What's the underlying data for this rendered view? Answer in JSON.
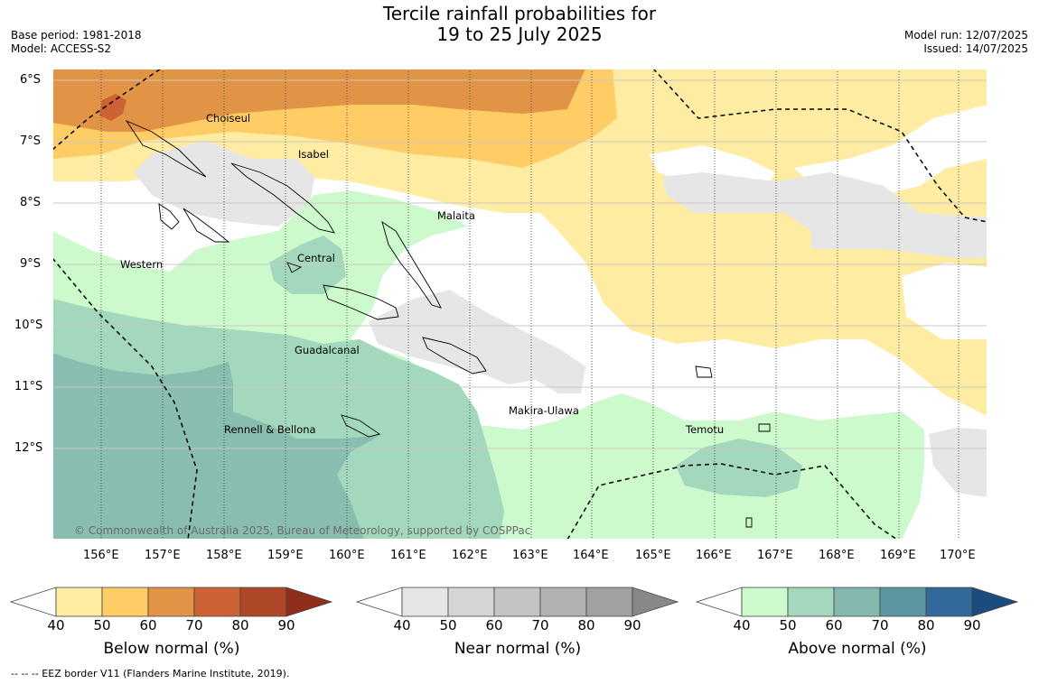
{
  "header": {
    "title_line1": "Tercile rainfall probabilities for",
    "title_line2": "19 to 25 July 2025",
    "base_period": "Base period: 1981-2018",
    "model": "Model: ACCESS-S2",
    "model_run": "Model run: 12/07/2025",
    "issued": "Issued: 14/07/2025"
  },
  "map": {
    "latitude_labels": [
      "6°S",
      "7°S",
      "8°S",
      "9°S",
      "10°S",
      "11°S",
      "12°S"
    ],
    "longitude_labels": [
      "156°E",
      "157°E",
      "158°E",
      "159°E",
      "160°E",
      "161°E",
      "162°E",
      "163°E",
      "164°E",
      "165°E",
      "166°E",
      "167°E",
      "168°E",
      "169°E",
      "170°E"
    ],
    "regions": [
      "Choiseul",
      "Isabel",
      "Malaita",
      "Western",
      "Central",
      "Guadalcanal",
      "Makira-Ulawa",
      "Rennell & Bellona",
      "Temotu"
    ],
    "copyright": "© Commonwealth of Australia 2025, Bureau of Meteorology, supported by COSPPac"
  },
  "colorbars": [
    {
      "label": "Below normal (%)",
      "ticks": [
        "40",
        "50",
        "60",
        "70",
        "80",
        "90"
      ],
      "colors": [
        "#ffffff",
        "#ffeca3",
        "#ffcc66",
        "#e29446",
        "#cd6334",
        "#af4826",
        "#8f2f1b"
      ]
    },
    {
      "label": "Near normal (%)",
      "ticks": [
        "40",
        "50",
        "60",
        "70",
        "80",
        "90"
      ],
      "colors": [
        "#ffffff",
        "#e6e6e6",
        "#d5d5d5",
        "#c4c4c4",
        "#b2b2b2",
        "#a1a1a1",
        "#888888"
      ]
    },
    {
      "label": "Above normal (%)",
      "ticks": [
        "40",
        "50",
        "60",
        "70",
        "80",
        "90"
      ],
      "colors": [
        "#ffffff",
        "#ccfacc",
        "#a3d8bc",
        "#84b8ae",
        "#5c96a0",
        "#32689a",
        "#1c4c7e"
      ]
    }
  ],
  "footer": "--  --  -- EEZ border V11 (Flanders Marine Institute, 2019)."
}
